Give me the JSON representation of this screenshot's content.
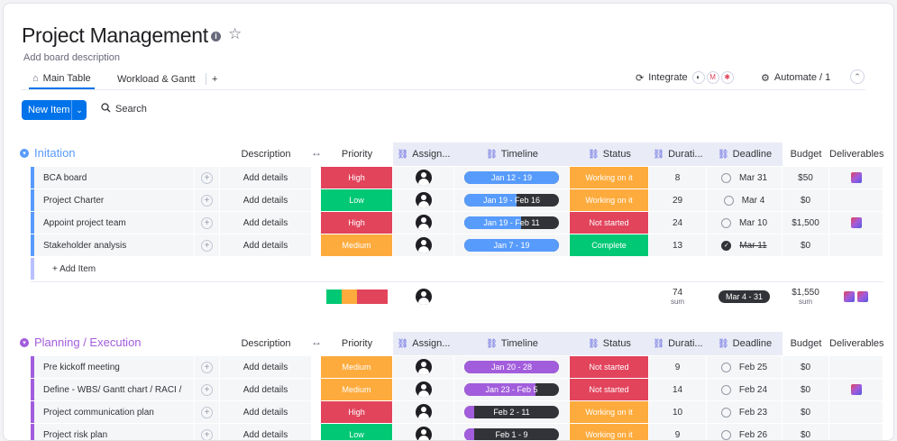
{
  "board": {
    "title": "Project Management",
    "description": "Add board description"
  },
  "tabs": [
    {
      "label": "Main Table",
      "active": true
    },
    {
      "label": "Workload & Gantt",
      "active": false
    }
  ],
  "tab_add": "+",
  "integrate_label": "Integrate",
  "automate_label": "Automate / 1",
  "new_item_label": "New Item",
  "search_label": "Search",
  "columns": {
    "description": "Description",
    "priority": "Priority",
    "assignee": "Assign...",
    "timeline": "Timeline",
    "status": "Status",
    "duration": "Durati...",
    "deadline": "Deadline",
    "budget": "Budget",
    "deliverables": "Deliverables"
  },
  "add_details": "Add details",
  "add_item": "+ Add Item",
  "groups": [
    {
      "name": "Initation",
      "color": "#579bfc",
      "timeline_color": "#579bfc",
      "rows": [
        {
          "name": "BCA board",
          "priority": "High",
          "priority_color": "#e2445c",
          "timeline": "Jan 12 - 19",
          "timeline_progress": 1.0,
          "status": "Working on it",
          "status_color": "#fdab3d",
          "duration": "8",
          "deadline": "Mar 31",
          "done": false,
          "budget": "$50",
          "deliverable": true
        },
        {
          "name": "Project Charter",
          "priority": "Low",
          "priority_color": "#00c875",
          "timeline": "Jan 19 - Feb 16",
          "timeline_progress": 0.55,
          "status": "Working on it",
          "status_color": "#fdab3d",
          "duration": "29",
          "deadline": "Mar 4",
          "done": false,
          "budget": "$0",
          "deliverable": false
        },
        {
          "name": "Appoint project team",
          "priority": "High",
          "priority_color": "#e2445c",
          "timeline": "Jan 19 - Feb 11",
          "timeline_progress": 0.6,
          "status": "Not started",
          "status_color": "#e2445c",
          "duration": "24",
          "deadline": "Mar 10",
          "done": false,
          "budget": "$1,500",
          "deliverable": true
        },
        {
          "name": "Stakeholder analysis",
          "priority": "Medium",
          "priority_color": "#fdab3d",
          "timeline": "Jan 7 - 19",
          "timeline_progress": 1.0,
          "status": "Complete",
          "status_color": "#00c875",
          "duration": "13",
          "deadline": "Mar 11",
          "done": true,
          "budget": "$0",
          "deliverable": false
        }
      ],
      "summary": {
        "duration": "74",
        "duration_label": "sum",
        "deadline": "Mar 4 - 31",
        "budget": "$1,550",
        "budget_label": "sum"
      }
    },
    {
      "name": "Planning / Execution",
      "color": "#a25ddc",
      "timeline_color": "#a25ddc",
      "rows": [
        {
          "name": "Pre kickoff meeting",
          "priority": "Medium",
          "priority_color": "#fdab3d",
          "timeline": "Jan 20 - 28",
          "timeline_progress": 1.0,
          "status": "Not started",
          "status_color": "#e2445c",
          "duration": "9",
          "deadline": "Feb 25",
          "done": false,
          "budget": "$0",
          "deliverable": false
        },
        {
          "name": "Define - WBS/ Gantt chart / RACI /",
          "priority": "Medium",
          "priority_color": "#fdab3d",
          "timeline": "Jan 23 - Feb 5",
          "timeline_progress": 0.75,
          "status": "Not started",
          "status_color": "#e2445c",
          "duration": "14",
          "deadline": "Feb 24",
          "done": false,
          "budget": "$0",
          "deliverable": true
        },
        {
          "name": "Project communication plan",
          "priority": "High",
          "priority_color": "#e2445c",
          "timeline": "Feb 2 - 11",
          "timeline_progress": 0.1,
          "status": "Working on it",
          "status_color": "#fdab3d",
          "duration": "10",
          "deadline": "Feb 23",
          "done": false,
          "budget": "$0",
          "deliverable": false
        },
        {
          "name": "Project risk plan",
          "priority": "Low",
          "priority_color": "#00c875",
          "timeline": "Feb 1 - 9",
          "timeline_progress": 0.1,
          "status": "Working on it",
          "status_color": "#fdab3d",
          "duration": "9",
          "deadline": "Feb 26",
          "done": false,
          "budget": "$0",
          "deliverable": false
        }
      ]
    }
  ]
}
